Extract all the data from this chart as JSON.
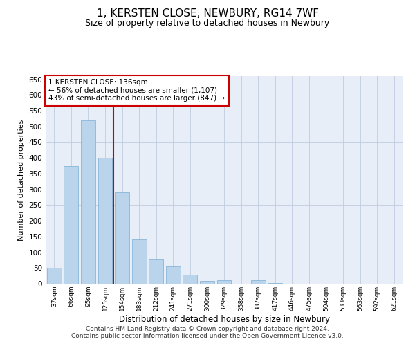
{
  "title": "1, KERSTEN CLOSE, NEWBURY, RG14 7WF",
  "subtitle": "Size of property relative to detached houses in Newbury",
  "xlabel": "Distribution of detached houses by size in Newbury",
  "ylabel": "Number of detached properties",
  "categories": [
    "37sqm",
    "66sqm",
    "95sqm",
    "125sqm",
    "154sqm",
    "183sqm",
    "212sqm",
    "241sqm",
    "271sqm",
    "300sqm",
    "329sqm",
    "358sqm",
    "387sqm",
    "417sqm",
    "446sqm",
    "475sqm",
    "504sqm",
    "533sqm",
    "563sqm",
    "592sqm",
    "621sqm"
  ],
  "values": [
    50,
    375,
    520,
    400,
    290,
    140,
    80,
    55,
    28,
    8,
    10,
    0,
    10,
    2,
    1,
    1,
    0,
    0,
    1,
    0,
    1
  ],
  "bar_color": "#bad4eb",
  "bar_edge_color": "#7aadd4",
  "vline_x": 3.5,
  "vline_color": "#cc0000",
  "annotation_text": "1 KERSTEN CLOSE: 136sqm\n← 56% of detached houses are smaller (1,107)\n43% of semi-detached houses are larger (847) →",
  "annotation_box_color": "white",
  "annotation_box_edge_color": "#cc0000",
  "ylim": [
    0,
    660
  ],
  "yticks": [
    0,
    50,
    100,
    150,
    200,
    250,
    300,
    350,
    400,
    450,
    500,
    550,
    600,
    650
  ],
  "footer_text": "Contains HM Land Registry data © Crown copyright and database right 2024.\nContains public sector information licensed under the Open Government Licence v3.0.",
  "background_color": "#e8eef8",
  "grid_color": "#c0cce0",
  "title_fontsize": 11,
  "subtitle_fontsize": 9,
  "xlabel_fontsize": 8.5,
  "ylabel_fontsize": 8,
  "footer_fontsize": 6.5,
  "annotation_fontsize": 7.5
}
